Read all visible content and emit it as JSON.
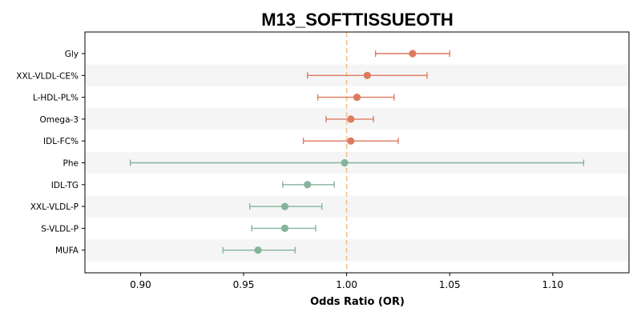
{
  "chart_data": {
    "type": "forest",
    "title": "M13_SOFTTISSUEOTH",
    "xlabel": "Odds Ratio (OR)",
    "xlim": [
      0.873,
      1.137
    ],
    "xticks": [
      0.9,
      0.95,
      1.0,
      1.05,
      1.1
    ],
    "xtick_labels": [
      "0.90",
      "0.95",
      "1.00",
      "1.05",
      "1.10"
    ],
    "reference_line": 1.0,
    "colors": {
      "positive": "#de7a5f",
      "negative": "#85b39b",
      "reference_line": "#f2c28a",
      "band": "#f5f5f5"
    },
    "rows": [
      {
        "label": "Gly",
        "or": 1.032,
        "lower": 1.014,
        "upper": 1.05
      },
      {
        "label": "XXL-VLDL-CE%",
        "or": 1.01,
        "lower": 0.981,
        "upper": 1.039
      },
      {
        "label": "L-HDL-PL%",
        "or": 1.005,
        "lower": 0.986,
        "upper": 1.023
      },
      {
        "label": "Omega-3",
        "or": 1.002,
        "lower": 0.99,
        "upper": 1.013
      },
      {
        "label": "IDL-FC%",
        "or": 1.002,
        "lower": 0.979,
        "upper": 1.025
      },
      {
        "label": "Phe",
        "or": 0.999,
        "lower": 0.895,
        "upper": 1.115
      },
      {
        "label": "IDL-TG",
        "or": 0.981,
        "lower": 0.969,
        "upper": 0.994
      },
      {
        "label": "XXL-VLDL-P",
        "or": 0.97,
        "lower": 0.953,
        "upper": 0.988
      },
      {
        "label": "S-VLDL-P",
        "or": 0.97,
        "lower": 0.954,
        "upper": 0.985
      },
      {
        "label": "MUFA",
        "or": 0.957,
        "lower": 0.94,
        "upper": 0.975
      }
    ]
  }
}
